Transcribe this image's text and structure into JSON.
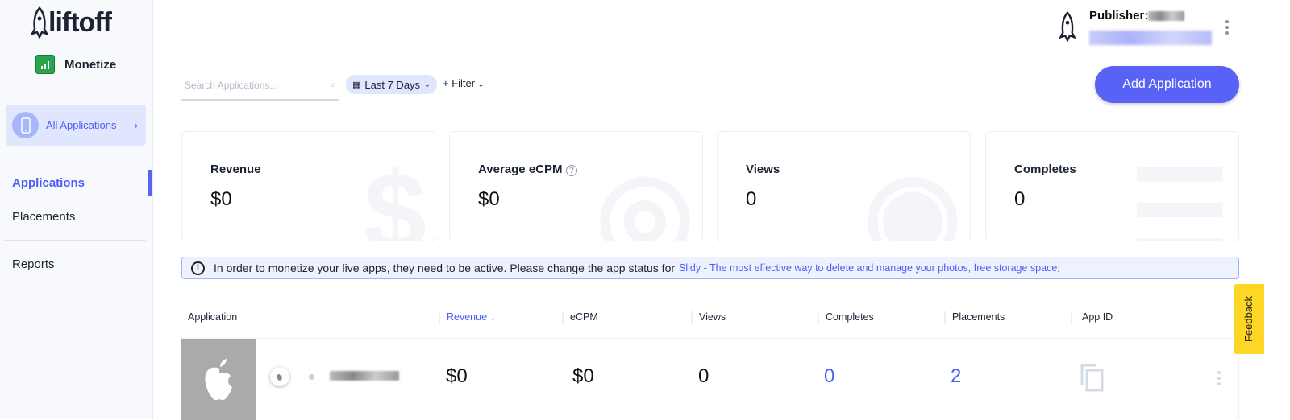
{
  "brand": {
    "logo": "liftoff",
    "product": "Monetize"
  },
  "sidebar": {
    "all_apps": "All Applications",
    "items": [
      {
        "label": "Applications",
        "active": true
      },
      {
        "label": "Placements"
      },
      {
        "label": "Reports"
      }
    ]
  },
  "header": {
    "publisher_label": "Publisher:",
    "add_button": "Add Application"
  },
  "toolbar": {
    "search_placeholder": "Search Applications...",
    "date_range": "Last 7 Days",
    "filter": "+ Filter"
  },
  "cards": [
    {
      "title": "Revenue",
      "value": "$0"
    },
    {
      "title": "Average eCPM",
      "value": "$0"
    },
    {
      "title": "Views",
      "value": "0"
    },
    {
      "title": "Completes",
      "value": "0"
    }
  ],
  "alert": {
    "text": "In order to monetize your live apps, they need to be active. Please change the app status for",
    "link": "Slidy - The most effective way to delete and manage your photos, free storage space",
    "end": "."
  },
  "table": {
    "columns": [
      "Application",
      "Revenue",
      "eCPM",
      "Views",
      "Completes",
      "Placements",
      "App ID"
    ],
    "rows": [
      {
        "platform": "iOS",
        "revenue": "$0",
        "ecpm": "$0",
        "views": "0",
        "completes": "0",
        "placements": "2"
      }
    ]
  },
  "feedback": "Feedback",
  "colors": {
    "accent": "#5862f6",
    "feedback": "#fdd626"
  }
}
